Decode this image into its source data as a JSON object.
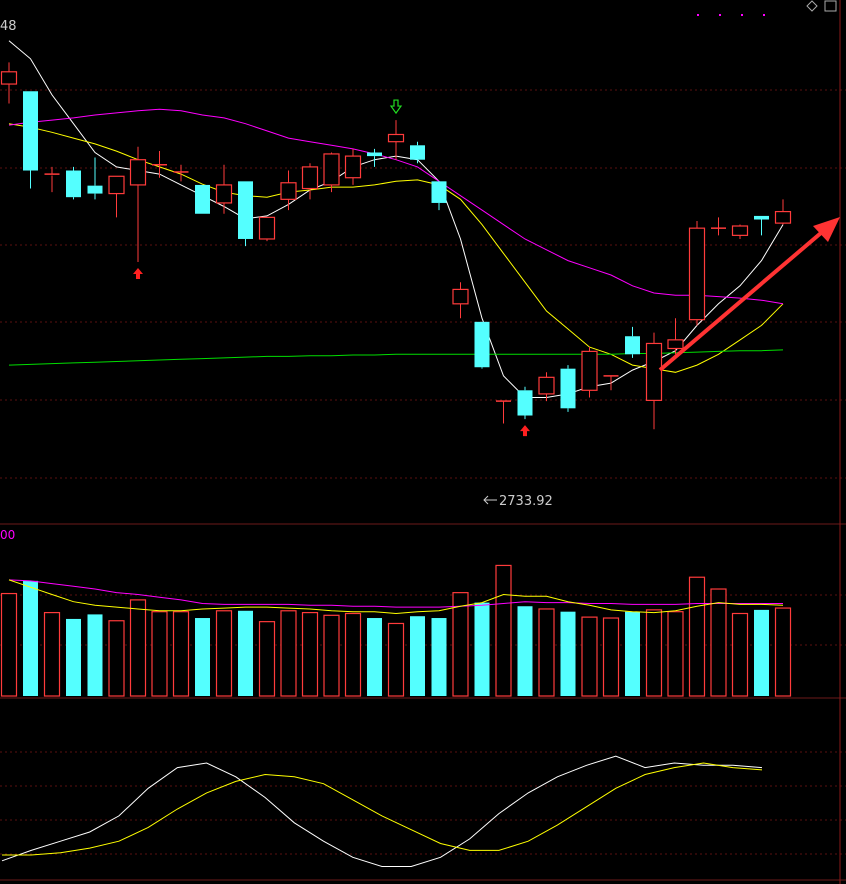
{
  "top_left_label": "48",
  "low_label": "2733.92",
  "volume_label": "00",
  "chart_data": {
    "type": "candlestick",
    "price_range": [
      2600,
      3280
    ],
    "candles": [
      {
        "o": 3205,
        "h": 3235,
        "l": 3178,
        "c": 3222
      },
      {
        "o": 3195,
        "h": 3195,
        "l": 3060,
        "c": 3085
      },
      {
        "o": 3078,
        "h": 3090,
        "l": 3055,
        "c": 3080
      },
      {
        "o": 3085,
        "h": 3090,
        "l": 3045,
        "c": 3048
      },
      {
        "o": 3064,
        "h": 3103,
        "l": 3045,
        "c": 3053
      },
      {
        "o": 3053,
        "h": 3075,
        "l": 3020,
        "c": 3077
      },
      {
        "o": 3065,
        "h": 3118,
        "l": 2958,
        "c": 3100
      },
      {
        "o": 3093,
        "h": 3112,
        "l": 3075,
        "c": 3093
      },
      {
        "o": 3083,
        "h": 3093,
        "l": 3070,
        "c": 3083
      },
      {
        "o": 3065,
        "h": 3065,
        "l": 3025,
        "c": 3025
      },
      {
        "o": 3040,
        "h": 3093,
        "l": 3025,
        "c": 3065
      },
      {
        "o": 3070,
        "h": 3070,
        "l": 2980,
        "c": 2990
      },
      {
        "o": 2990,
        "h": 3020,
        "l": 2987,
        "c": 3020
      },
      {
        "o": 3045,
        "h": 3085,
        "l": 3030,
        "c": 3068
      },
      {
        "o": 3060,
        "h": 3095,
        "l": 3045,
        "c": 3090
      },
      {
        "o": 3065,
        "h": 3110,
        "l": 3055,
        "c": 3108
      },
      {
        "o": 3075,
        "h": 3115,
        "l": 3065,
        "c": 3105
      },
      {
        "o": 3110,
        "h": 3115,
        "l": 3090,
        "c": 3105
      },
      {
        "o": 3125,
        "h": 3155,
        "l": 3100,
        "c": 3135
      },
      {
        "o": 3120,
        "h": 3125,
        "l": 3095,
        "c": 3100
      },
      {
        "o": 3070,
        "h": 3070,
        "l": 3030,
        "c": 3040
      },
      {
        "o": 2900,
        "h": 2930,
        "l": 2880,
        "c": 2920
      },
      {
        "o": 2875,
        "h": 2875,
        "l": 2810,
        "c": 2812
      },
      {
        "o": 2765,
        "h": 2765,
        "l": 2734,
        "c": 2765
      },
      {
        "o": 2780,
        "h": 2785,
        "l": 2740,
        "c": 2745
      },
      {
        "o": 2775,
        "h": 2805,
        "l": 2765,
        "c": 2798
      },
      {
        "o": 2810,
        "h": 2815,
        "l": 2750,
        "c": 2755
      },
      {
        "o": 2780,
        "h": 2840,
        "l": 2770,
        "c": 2834
      },
      {
        "o": 2800,
        "h": 2800,
        "l": 2780,
        "c": 2800
      },
      {
        "o": 2855,
        "h": 2868,
        "l": 2825,
        "c": 2830
      },
      {
        "o": 2766,
        "h": 2860,
        "l": 2726,
        "c": 2845
      },
      {
        "o": 2838,
        "h": 2880,
        "l": 2830,
        "c": 2850
      },
      {
        "o": 2878,
        "h": 3015,
        "l": 2870,
        "c": 3005
      },
      {
        "o": 3005,
        "h": 3020,
        "l": 2995,
        "c": 3005
      },
      {
        "o": 2995,
        "h": 3010,
        "l": 2990,
        "c": 3008
      },
      {
        "o": 3022,
        "h": 3022,
        "l": 2995,
        "c": 3017
      },
      {
        "o": 3012,
        "h": 3045,
        "l": 3010,
        "c": 3028
      }
    ],
    "ma_series": [
      {
        "color": "#ffffff",
        "values": [
          3265,
          3240,
          3190,
          3150,
          3110,
          3090,
          3085,
          3080,
          3065,
          3050,
          3035,
          3018,
          3022,
          3038,
          3058,
          3070,
          3090,
          3100,
          3105,
          3100,
          3070,
          2990,
          2880,
          2800,
          2770,
          2770,
          2775,
          2785,
          2790,
          2808,
          2820,
          2835,
          2870,
          2900,
          2925,
          2960,
          3010
        ]
      },
      {
        "color": "#ffff00",
        "values": [
          3150,
          3145,
          3138,
          3130,
          3122,
          3112,
          3100,
          3090,
          3080,
          3066,
          3055,
          3050,
          3048,
          3055,
          3058,
          3062,
          3062,
          3065,
          3070,
          3072,
          3065,
          3045,
          3010,
          2970,
          2930,
          2890,
          2865,
          2840,
          2830,
          2815,
          2810,
          2805,
          2815,
          2830,
          2850,
          2870,
          2900
        ]
      },
      {
        "color": "#ff00ff",
        "values": [
          3148,
          3152,
          3155,
          3158,
          3162,
          3165,
          3168,
          3170,
          3168,
          3162,
          3158,
          3150,
          3140,
          3130,
          3125,
          3120,
          3115,
          3108,
          3100,
          3090,
          3070,
          3050,
          3030,
          3010,
          2990,
          2975,
          2960,
          2950,
          2940,
          2925,
          2915,
          2912,
          2912,
          2910,
          2908,
          2905,
          2900
        ]
      },
      {
        "color": "#00dd00",
        "values": [
          2815,
          2816,
          2817,
          2818,
          2819,
          2820,
          2821,
          2822,
          2823,
          2824,
          2825,
          2826,
          2827,
          2827,
          2828,
          2828,
          2829,
          2829,
          2830,
          2830,
          2830,
          2830,
          2830,
          2830,
          2830,
          2830,
          2830,
          2830,
          2830,
          2831,
          2831,
          2832,
          2833,
          2834,
          2835,
          2835,
          2836
        ]
      }
    ],
    "signals": [
      {
        "index": 6,
        "type": "buy"
      },
      {
        "index": 18,
        "type": "sell"
      },
      {
        "index": 24,
        "type": "buy"
      }
    ],
    "volume": [
      113,
      127,
      92,
      85,
      90,
      83,
      106,
      93,
      93,
      86,
      94,
      94,
      82,
      94,
      92,
      89,
      91,
      86,
      80,
      88,
      86,
      114,
      103,
      144,
      99,
      96,
      93,
      87,
      86,
      93,
      95,
      93,
      131,
      118,
      91,
      95,
      97
    ],
    "volume_ma": [
      {
        "color": "#ff00ff",
        "values": [
          128,
          127,
          124,
          121,
          118,
          114,
          112,
          109,
          106,
          102,
          101,
          101,
          101,
          101,
          100,
          100,
          99,
          99,
          98,
          98,
          98,
          99,
          100,
          102,
          104,
          103,
          103,
          102,
          102,
          101,
          101,
          101,
          102,
          102,
          102,
          102,
          102
        ]
      },
      {
        "color": "#ffff00",
        "values": [
          128,
          120,
          112,
          104,
          100,
          98,
          96,
          94,
          94,
          96,
          97,
          98,
          98,
          97,
          96,
          94,
          93,
          93,
          91,
          93,
          94,
          99,
          103,
          112,
          110,
          110,
          104,
          100,
          95,
          93,
          92,
          94,
          99,
          103,
          101,
          101,
          100
        ]
      }
    ],
    "oscillator": {
      "range": [
        -10,
        110
      ],
      "series": [
        {
          "color": "#ffffff",
          "values": [
            5,
            14,
            22,
            30,
            44,
            68,
            86,
            90,
            78,
            60,
            38,
            22,
            8,
            0,
            0,
            8,
            24,
            46,
            64,
            78,
            88,
            96,
            86,
            90,
            88,
            88,
            86
          ]
        },
        {
          "color": "#ffff00",
          "values": [
            10,
            10,
            12,
            16,
            22,
            34,
            50,
            64,
            74,
            80,
            78,
            72,
            58,
            44,
            32,
            20,
            14,
            14,
            22,
            36,
            52,
            68,
            80,
            86,
            90,
            86,
            84
          ]
        }
      ]
    }
  }
}
